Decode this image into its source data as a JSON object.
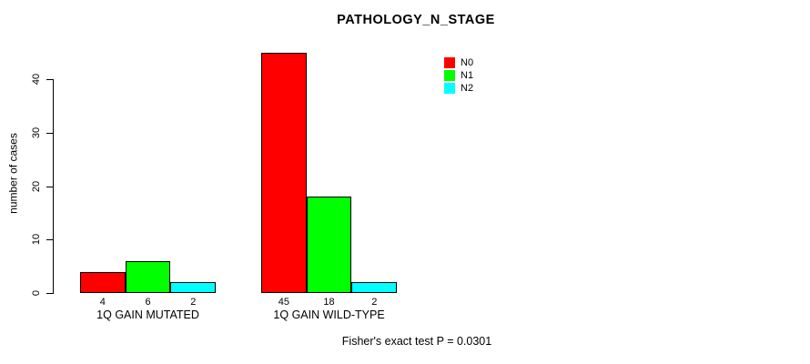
{
  "chart_data": {
    "type": "bar",
    "title": "PATHOLOGY_N_STAGE",
    "xlabel": "",
    "ylabel": "number of cases",
    "ylim": [
      0,
      45
    ],
    "yticks": [
      0,
      10,
      20,
      30,
      40
    ],
    "grid": false,
    "legend_position": "top-right",
    "categories": [
      "1Q GAIN MUTATED",
      "1Q GAIN WILD-TYPE"
    ],
    "series": [
      {
        "name": "N0",
        "color": "#FF0000",
        "values": [
          4,
          45
        ]
      },
      {
        "name": "N1",
        "color": "#00FF00",
        "values": [
          6,
          18
        ]
      },
      {
        "name": "N2",
        "color": "#00FFFF",
        "values": [
          2,
          2
        ]
      }
    ],
    "annotation": "Fisher's exact test P = 0.0301"
  },
  "colors": {
    "background": "#FFFFFF",
    "axis": "#000000",
    "bar_border": "#000000",
    "text": "#000000"
  }
}
